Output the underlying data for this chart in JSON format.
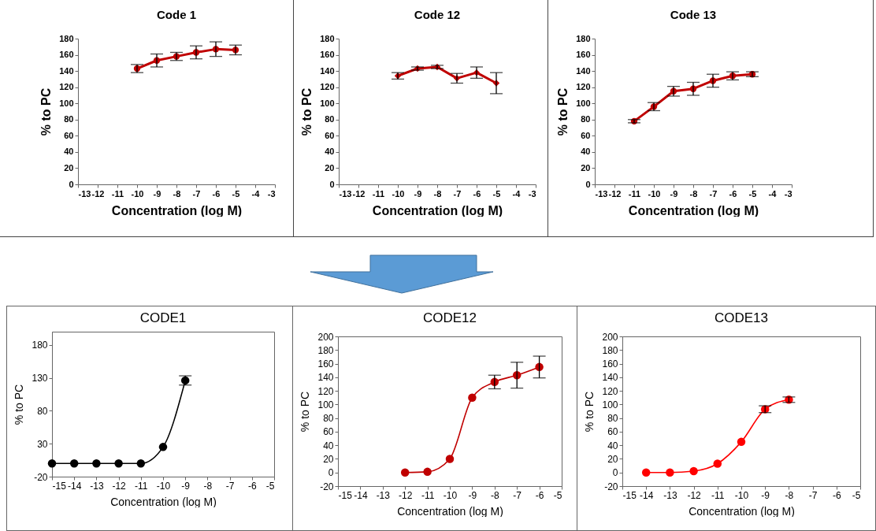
{
  "chart_data": [
    {
      "type": "line",
      "title": "Code 1",
      "xlabel": "Concentration (log M)",
      "ylabel": "% to PC",
      "x": [
        -10,
        -9,
        -8,
        -7,
        -6,
        -5
      ],
      "series": [
        {
          "color": "#c00000",
          "values": [
            143,
            153,
            158,
            163,
            167,
            166
          ],
          "errors": [
            5,
            8,
            5,
            8,
            9,
            6
          ]
        }
      ],
      "xlim": [
        -13,
        -3
      ],
      "xticks": [
        -13,
        -12,
        -11,
        -10,
        -9,
        -8,
        -7,
        -6,
        -5,
        -4,
        -3
      ],
      "ylim": [
        0,
        180
      ],
      "yticks": [
        0,
        20,
        40,
        60,
        80,
        100,
        120,
        140,
        160,
        180
      ],
      "marker": "circle",
      "line_style": "solid"
    },
    {
      "type": "line",
      "title": "Code 12",
      "xlabel": "Concentration (log M)",
      "ylabel": "% to PC",
      "x": [
        -10,
        -9,
        -8,
        -7,
        -6,
        -5
      ],
      "series": [
        {
          "color": "#c00000",
          "values": [
            134,
            143,
            145,
            131,
            138,
            125
          ],
          "errors": [
            4,
            2,
            2,
            6,
            7,
            13
          ]
        }
      ],
      "xlim": [
        -13,
        -3
      ],
      "xticks": [
        -13,
        -12,
        -11,
        -10,
        -9,
        -8,
        -7,
        -6,
        -5,
        -4,
        -3
      ],
      "ylim": [
        0,
        180
      ],
      "yticks": [
        0,
        20,
        40,
        60,
        80,
        100,
        120,
        140,
        160,
        180
      ],
      "marker": "diamond",
      "line_style": "solid"
    },
    {
      "type": "line",
      "title": "Code 13",
      "xlabel": "Concentration (log M)",
      "ylabel": "% to PC",
      "x": [
        -11,
        -10,
        -9,
        -8,
        -7,
        -6,
        -5
      ],
      "series": [
        {
          "color": "#c00000",
          "values": [
            78,
            96,
            115,
            118,
            128,
            134,
            136
          ],
          "errors": [
            2,
            5,
            6,
            8,
            8,
            5,
            3
          ]
        }
      ],
      "xlim": [
        -13,
        -3
      ],
      "xticks": [
        -13,
        -12,
        -11,
        -10,
        -9,
        -8,
        -7,
        -6,
        -5,
        -4,
        -3
      ],
      "ylim": [
        0,
        180
      ],
      "yticks": [
        0,
        20,
        40,
        60,
        80,
        100,
        120,
        140,
        160,
        180
      ],
      "marker": "circle",
      "line_style": "solid"
    },
    {
      "type": "line",
      "title": "CODE1",
      "xlabel": "Concentration (log M)",
      "ylabel": "% to PC",
      "x": [
        -15,
        -14,
        -13,
        -12,
        -11,
        -10,
        -9
      ],
      "series": [
        {
          "color": "#000000",
          "values": [
            0,
            0,
            0,
            0,
            0,
            25,
            126
          ],
          "errors": [
            null,
            null,
            null,
            null,
            null,
            null,
            7
          ]
        }
      ],
      "xlim": [
        -15,
        -5
      ],
      "xticks": [
        -15,
        -14,
        -13,
        -12,
        -11,
        -10,
        -9,
        -8,
        -7,
        -6,
        -5
      ],
      "ylim": [
        -20,
        200
      ],
      "yticks": [
        -20,
        30,
        80,
        130,
        180
      ],
      "marker": "circle",
      "line_style": "solid"
    },
    {
      "type": "line",
      "title": "CODE12",
      "xlabel": "Concentration (log M)",
      "ylabel": "% to PC",
      "x": [
        -12,
        -11,
        -10,
        -9,
        -8,
        -7,
        -6
      ],
      "series": [
        {
          "color": "#c00000",
          "values": [
            0,
            1,
            20,
            110,
            133,
            143,
            155
          ],
          "errors": [
            null,
            null,
            null,
            null,
            10,
            19,
            16
          ]
        }
      ],
      "xlim": [
        -15,
        -5
      ],
      "xticks": [
        -15,
        -14,
        -13,
        -12,
        -11,
        -10,
        -9,
        -8,
        -7,
        -6,
        -5
      ],
      "ylim": [
        -20,
        200
      ],
      "yticks": [
        -20,
        0,
        20,
        40,
        60,
        80,
        100,
        120,
        140,
        160,
        180,
        200
      ],
      "marker": "circle",
      "line_style": "solid"
    },
    {
      "type": "line",
      "title": "CODE13",
      "xlabel": "Concentration (log M)",
      "ylabel": "% to PC",
      "x": [
        -14,
        -13,
        -12,
        -11,
        -10,
        -9,
        -8
      ],
      "series": [
        {
          "color": "#ff0000",
          "values": [
            0,
            0,
            2,
            13,
            45,
            93,
            107
          ],
          "errors": [
            null,
            null,
            null,
            null,
            null,
            5,
            4
          ]
        }
      ],
      "xlim": [
        -15,
        -5
      ],
      "xticks": [
        -15,
        -14,
        -13,
        -12,
        -11,
        -10,
        -9,
        -8,
        -7,
        -6,
        -5
      ],
      "ylim": [
        -20,
        200
      ],
      "yticks": [
        -20,
        0,
        20,
        40,
        60,
        80,
        100,
        120,
        140,
        160,
        180,
        200
      ],
      "marker": "circle",
      "line_style": "solid"
    }
  ]
}
